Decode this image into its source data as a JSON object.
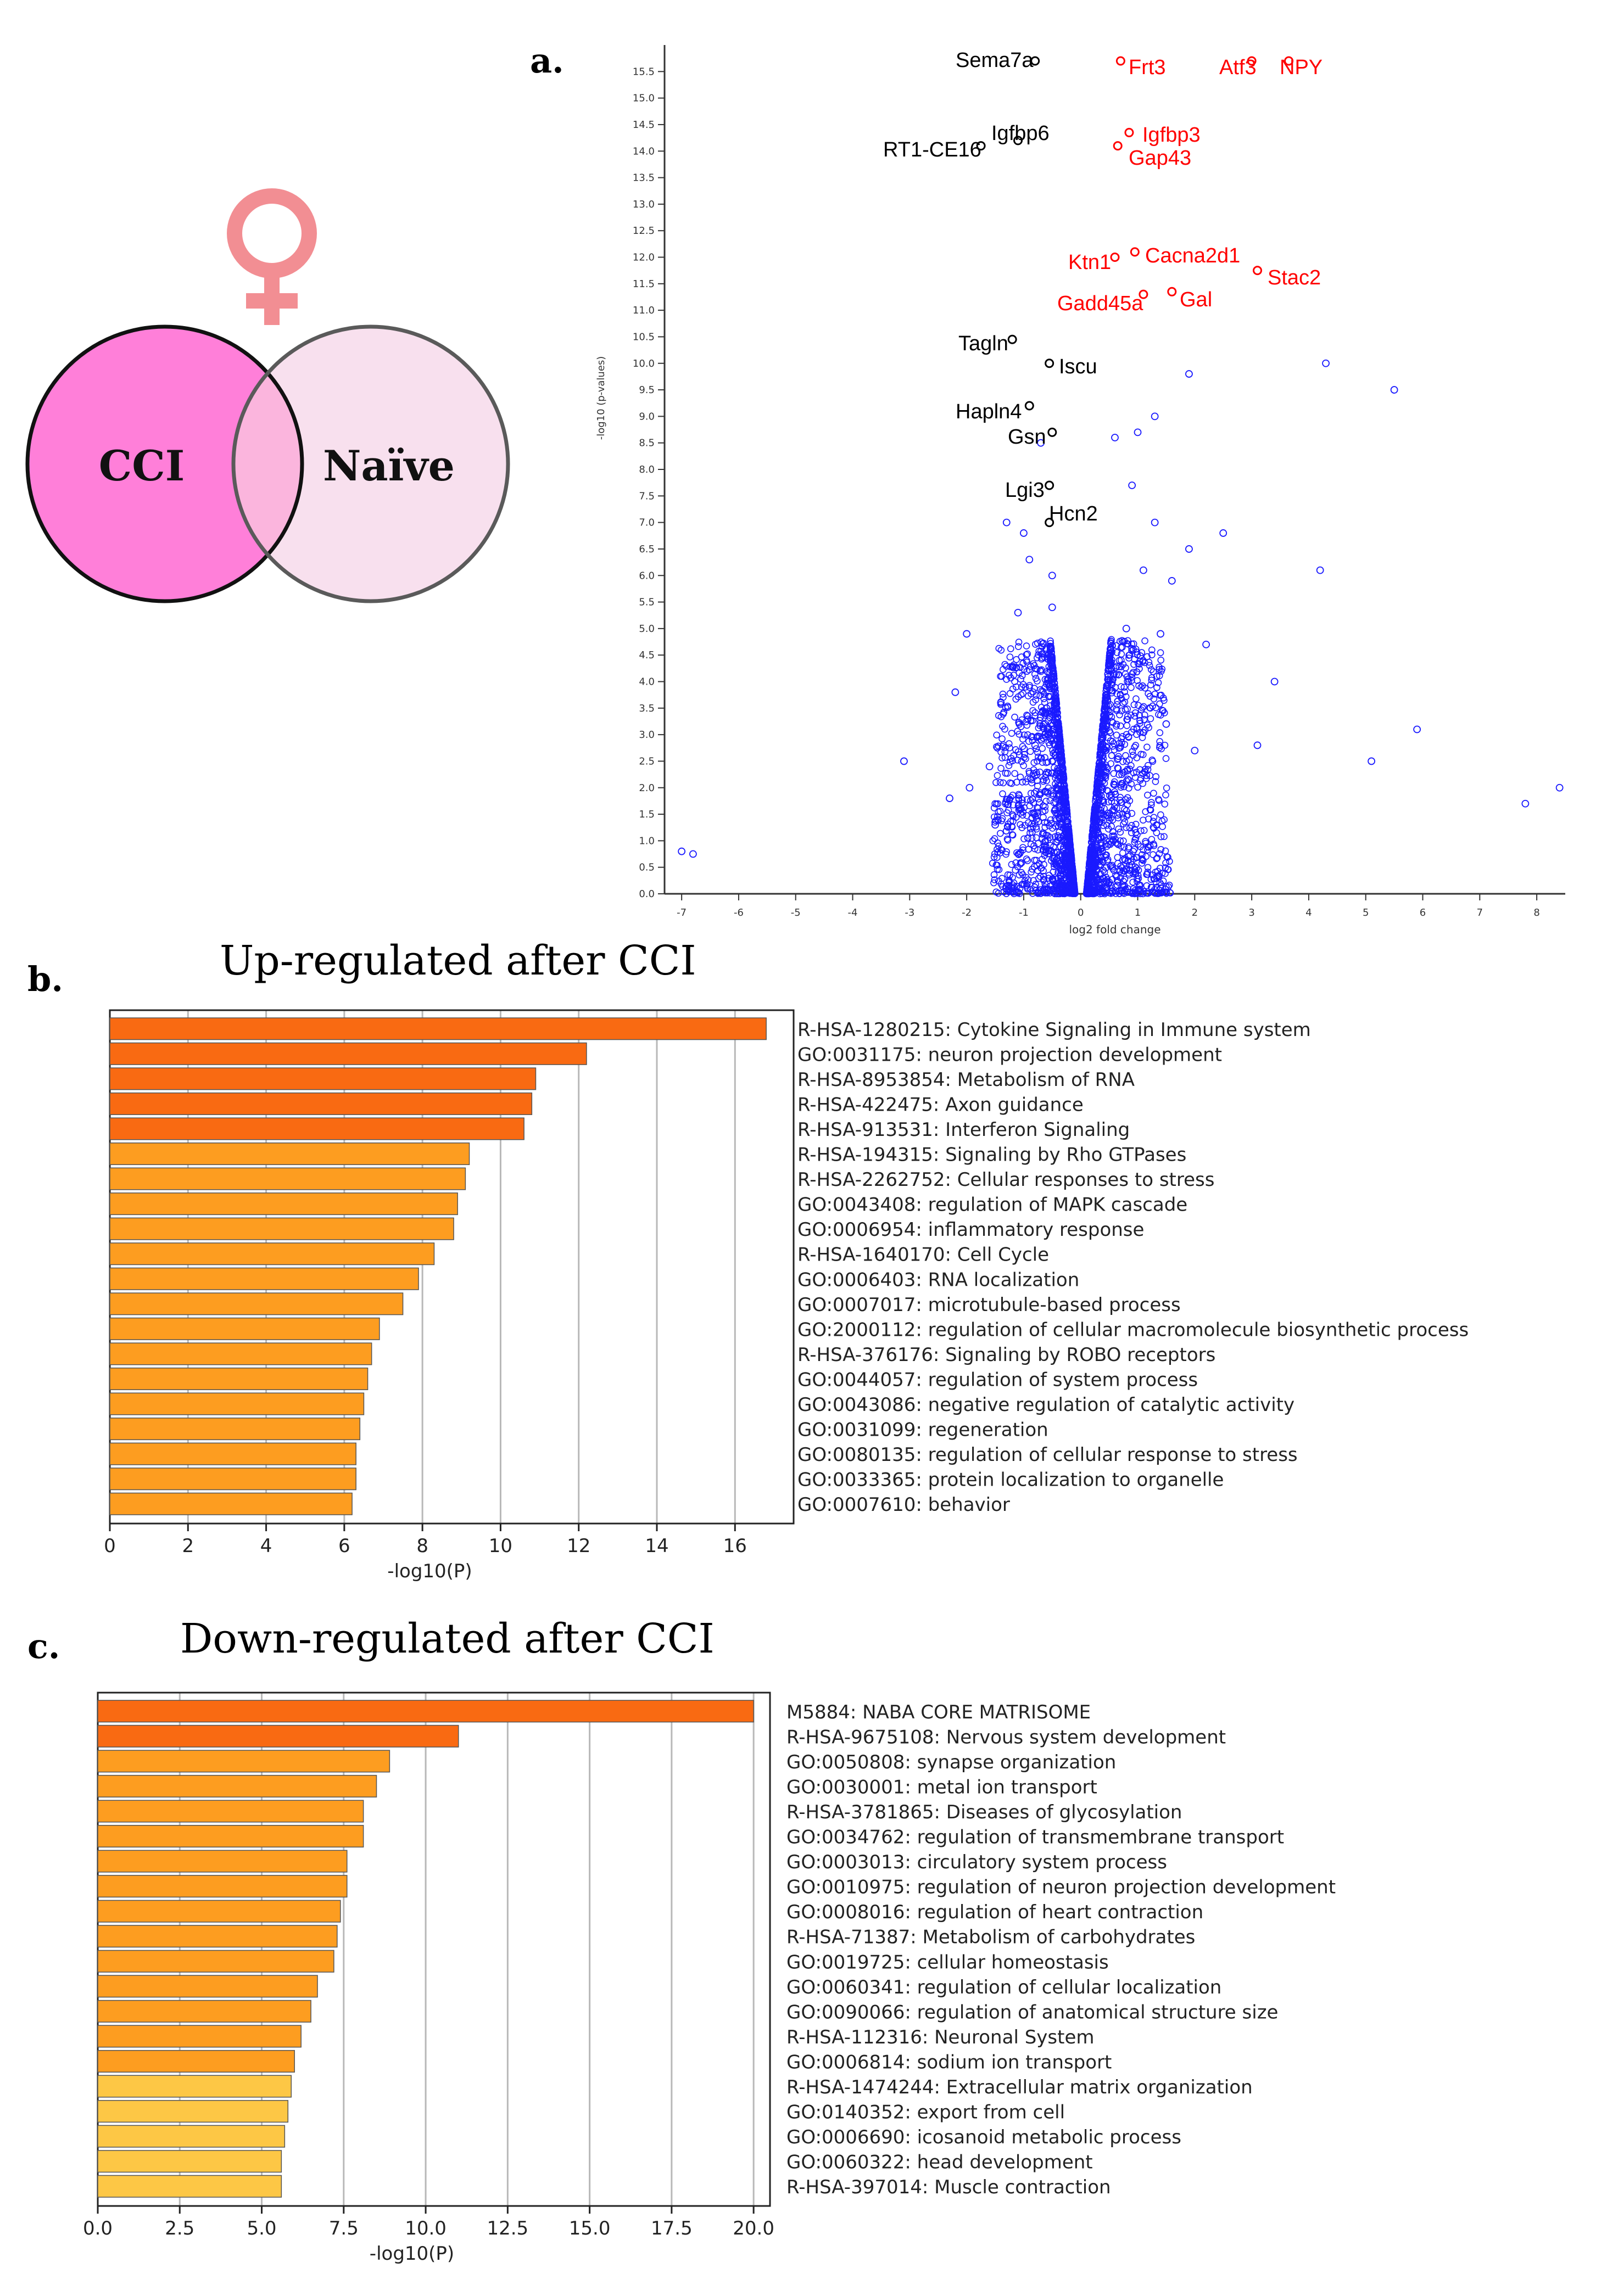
{
  "venn": {
    "left_label": "CCI",
    "right_label": "Naïve",
    "left_color": "#ff7fd9",
    "right_color": "#f8e0ee",
    "overlap_color": "#fbb5dd",
    "symbol_color": "#f28e93",
    "symbol": "female-symbol-icon"
  },
  "panel_a": {
    "label": "a.",
    "chart_data": {
      "type": "scatter",
      "title": "",
      "xlabel": "log2 fold change",
      "ylabel": "-log10 (p-values)",
      "xlim": [
        -7.3,
        8.5
      ],
      "ylim": [
        0,
        16
      ],
      "x_ticks": [
        "-7",
        "-6",
        "-5",
        "-4",
        "-3",
        "-2",
        "-1",
        "0",
        "1",
        "2",
        "3",
        "4",
        "5",
        "6",
        "7",
        "8"
      ],
      "y_ticks": [
        "0.0",
        "0.5",
        "1.0",
        "1.5",
        "2.0",
        "2.5",
        "3.0",
        "3.5",
        "4.0",
        "4.5",
        "5.0",
        "5.5",
        "6.0",
        "6.5",
        "7.0",
        "7.5",
        "8.0",
        "8.5",
        "9.0",
        "9.5",
        "10.0",
        "10.5",
        "11.0",
        "11.5",
        "12.0",
        "12.5",
        "13.0",
        "13.5",
        "14.0",
        "14.5",
        "15.0",
        "15.5"
      ],
      "labeled_points": [
        {
          "gene": "Sema7a",
          "x": -0.8,
          "y": 15.7,
          "color": "#000000"
        },
        {
          "gene": "Frt3",
          "x": 0.7,
          "y": 15.7,
          "color": "#ff0000"
        },
        {
          "gene": "Atf3",
          "x": 3.0,
          "y": 15.7,
          "color": "#ff0000"
        },
        {
          "gene": "NPY",
          "x": 3.65,
          "y": 15.7,
          "color": "#ff0000"
        },
        {
          "gene": "Igfbp6",
          "x": -1.1,
          "y": 14.2,
          "color": "#000000"
        },
        {
          "gene": "RT1-CE16",
          "x": -1.75,
          "y": 14.1,
          "color": "#000000"
        },
        {
          "gene": "Igfbp3",
          "x": 0.85,
          "y": 14.35,
          "color": "#ff0000"
        },
        {
          "gene": "Gap43",
          "x": 0.65,
          "y": 14.1,
          "color": "#ff0000"
        },
        {
          "gene": "Ktn1",
          "x": 0.6,
          "y": 12.0,
          "color": "#ff0000"
        },
        {
          "gene": "Cacna2d1",
          "x": 0.95,
          "y": 12.1,
          "color": "#ff0000"
        },
        {
          "gene": "Stac2",
          "x": 3.1,
          "y": 11.75,
          "color": "#ff0000"
        },
        {
          "gene": "Gadd45a",
          "x": 1.1,
          "y": 11.3,
          "color": "#ff0000"
        },
        {
          "gene": "Gal",
          "x": 1.6,
          "y": 11.35,
          "color": "#ff0000"
        },
        {
          "gene": "Tagln",
          "x": -1.2,
          "y": 10.45,
          "color": "#000000"
        },
        {
          "gene": "Iscu",
          "x": -0.55,
          "y": 10.0,
          "color": "#000000"
        },
        {
          "gene": "Hapln4",
          "x": -0.9,
          "y": 9.2,
          "color": "#000000"
        },
        {
          "gene": "Gsn",
          "x": -0.5,
          "y": 8.7,
          "color": "#000000"
        },
        {
          "gene": "Lgi3",
          "x": -0.55,
          "y": 7.7,
          "color": "#000000"
        },
        {
          "gene": "Hcn2",
          "x": -0.55,
          "y": 7.0,
          "color": "#000000"
        }
      ],
      "outlier_points": [
        [
          -7.0,
          0.8
        ],
        [
          -6.8,
          0.75
        ],
        [
          -3.1,
          2.5
        ],
        [
          -2.3,
          1.8
        ],
        [
          -2.2,
          3.8
        ],
        [
          -2.0,
          4.9
        ],
        [
          -1.95,
          2.0
        ],
        [
          -1.6,
          2.4
        ],
        [
          -1.5,
          1.3
        ],
        [
          -1.4,
          3.6
        ],
        [
          -1.3,
          7.0
        ],
        [
          -1.1,
          5.3
        ],
        [
          -1.0,
          6.8
        ],
        [
          -0.9,
          6.3
        ],
        [
          -0.8,
          2.8
        ],
        [
          -0.7,
          8.5
        ],
        [
          -0.6,
          4.6
        ],
        [
          -0.5,
          6.0
        ],
        [
          -0.5,
          5.4
        ],
        [
          -0.6,
          3.5
        ],
        [
          0.6,
          8.6
        ],
        [
          0.8,
          5.0
        ],
        [
          0.9,
          7.7
        ],
        [
          1.0,
          8.7
        ],
        [
          1.1,
          6.1
        ],
        [
          1.3,
          9.0
        ],
        [
          1.3,
          7.0
        ],
        [
          1.4,
          4.9
        ],
        [
          1.5,
          3.2
        ],
        [
          1.6,
          5.9
        ],
        [
          1.9,
          9.8
        ],
        [
          1.9,
          6.5
        ],
        [
          2.0,
          2.7
        ],
        [
          2.2,
          4.7
        ],
        [
          2.5,
          6.8
        ],
        [
          3.1,
          2.8
        ],
        [
          3.4,
          4.0
        ],
        [
          4.2,
          6.1
        ],
        [
          4.3,
          10.0
        ],
        [
          5.1,
          2.5
        ],
        [
          5.5,
          9.5
        ],
        [
          5.9,
          3.1
        ],
        [
          7.8,
          1.7
        ],
        [
          8.4,
          2.0
        ]
      ]
    }
  },
  "panel_b": {
    "label": "b.",
    "chart_data": {
      "type": "bar",
      "orientation": "horizontal",
      "title": "Up-regulated after CCI",
      "xlabel": "-log10(P)",
      "xlim": [
        0,
        17.5
      ],
      "x_ticks": [
        "0",
        "2",
        "4",
        "6",
        "8",
        "10",
        "12",
        "14",
        "16"
      ],
      "categories": [
        "R-HSA-1280215: Cytokine Signaling in Immune system",
        "GO:0031175: neuron projection development",
        "R-HSA-8953854: Metabolism of RNA",
        "R-HSA-422475: Axon guidance",
        "R-HSA-913531: Interferon Signaling",
        "R-HSA-194315: Signaling by Rho GTPases",
        "R-HSA-2262752: Cellular responses to stress",
        "GO:0043408: regulation of MAPK cascade",
        "GO:0006954: inflammatory response",
        "R-HSA-1640170: Cell Cycle",
        "GO:0006403: RNA localization",
        "GO:0007017: microtubule-based process",
        "GO:2000112: regulation of cellular macromolecule biosynthetic process",
        "R-HSA-376176: Signaling by ROBO receptors",
        "GO:0044057: regulation of system process",
        "GO:0043086: negative regulation of catalytic activity",
        "GO:0031099: regeneration",
        "GO:0080135: regulation of cellular response to stress",
        "GO:0033365: protein localization to organelle",
        "GO:0007610: behavior"
      ],
      "values": [
        16.8,
        12.2,
        10.9,
        10.8,
        10.6,
        9.2,
        9.1,
        8.9,
        8.8,
        8.3,
        7.9,
        7.5,
        6.9,
        6.7,
        6.6,
        6.5,
        6.4,
        6.3,
        6.3,
        6.2
      ],
      "colors": [
        "#f96a12",
        "#f96a12",
        "#f96a12",
        "#f96a12",
        "#f96a12",
        "#fd9d20",
        "#fd9d20",
        "#fd9d20",
        "#fd9d20",
        "#fd9d20",
        "#fd9d20",
        "#fd9d20",
        "#fd9d20",
        "#fd9d20",
        "#fd9d20",
        "#fd9d20",
        "#fd9d20",
        "#fd9d20",
        "#fd9d20",
        "#fd9d20"
      ]
    }
  },
  "panel_c": {
    "label": "c.",
    "chart_data": {
      "type": "bar",
      "orientation": "horizontal",
      "title": "Down-regulated after CCI",
      "xlabel": "-log10(P)",
      "xlim": [
        0,
        20.5
      ],
      "x_ticks": [
        "0.0",
        "2.5",
        "5.0",
        "7.5",
        "10.0",
        "12.5",
        "15.0",
        "17.5",
        "20.0"
      ],
      "categories": [
        "M5884: NABA CORE MATRISOME",
        "R-HSA-9675108: Nervous system development",
        "GO:0050808: synapse organization",
        "GO:0030001: metal ion transport",
        "R-HSA-3781865: Diseases of glycosylation",
        "GO:0034762: regulation of transmembrane transport",
        "GO:0003013: circulatory system process",
        "GO:0010975: regulation of neuron projection development",
        "GO:0008016: regulation of heart contraction",
        "R-HSA-71387: Metabolism of carbohydrates",
        "GO:0019725: cellular homeostasis",
        "GO:0060341: regulation of cellular localization",
        "GO:0090066: regulation of anatomical structure size",
        "R-HSA-112316: Neuronal System",
        "GO:0006814: sodium ion transport",
        "R-HSA-1474244: Extracellular matrix organization",
        "GO:0140352: export from cell",
        "GO:0006690: icosanoid metabolic process",
        "GO:0060322: head development",
        "R-HSA-397014: Muscle contraction"
      ],
      "values": [
        20.0,
        11.0,
        8.9,
        8.5,
        8.1,
        8.1,
        7.6,
        7.6,
        7.4,
        7.3,
        7.2,
        6.7,
        6.5,
        6.2,
        6.0,
        5.9,
        5.8,
        5.7,
        5.6,
        5.6
      ],
      "colors": [
        "#f96a12",
        "#f96a12",
        "#fd9d20",
        "#fd9d20",
        "#fd9d20",
        "#fd9d20",
        "#fd9d20",
        "#fd9d20",
        "#fd9d20",
        "#fd9d20",
        "#fd9d20",
        "#fd9d20",
        "#fd9d20",
        "#fd9d20",
        "#fd9d20",
        "#fdc745",
        "#fdc745",
        "#fdc745",
        "#fdc745",
        "#fdc745"
      ]
    }
  }
}
